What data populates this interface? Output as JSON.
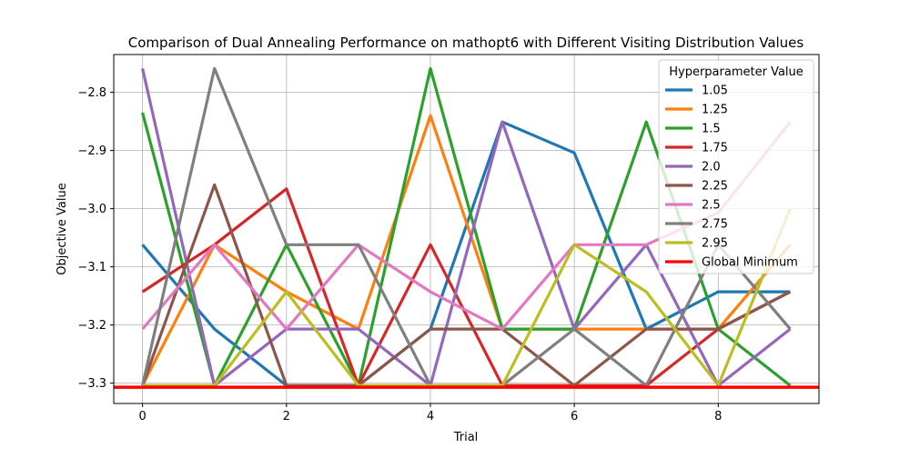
{
  "chart_data": {
    "type": "line",
    "title": "Comparison of Dual Annealing Performance on mathopt6 with Different Visiting Distribution Values",
    "xlabel": "Trial",
    "ylabel": "Objective Value",
    "xlim": [
      -0.4,
      9.4
    ],
    "ylim": [
      -3.335,
      -2.735
    ],
    "xticks": [
      0,
      2,
      4,
      6,
      8
    ],
    "xtick_labels": [
      "0",
      "2",
      "4",
      "6",
      "8"
    ],
    "yticks": [
      -2.8,
      -2.9,
      -3.0,
      -3.1,
      -3.2,
      -3.3
    ],
    "ytick_labels": [
      "−2.8",
      "−2.9",
      "−3.0",
      "−3.1",
      "−3.2",
      "−3.3"
    ],
    "grid": true,
    "legend": {
      "title": "Hyperparameter Value",
      "placement": "top-right"
    },
    "x": [
      0,
      1,
      2,
      3,
      4,
      5,
      6,
      7,
      8,
      9
    ],
    "series": [
      {
        "name": "1.05",
        "color": "#1f77b4",
        "values": [
          -3.062,
          -3.207,
          -3.304,
          -3.304,
          -3.207,
          -2.851,
          -2.904,
          -3.207,
          -3.143,
          -3.143
        ]
      },
      {
        "name": "1.25",
        "color": "#ff7f0e",
        "values": [
          -3.304,
          -3.062,
          -3.143,
          -3.207,
          -2.84,
          -3.207,
          -3.207,
          -3.207,
          -3.207,
          -3.062
        ]
      },
      {
        "name": "1.5",
        "color": "#2ca02c",
        "values": [
          -2.835,
          -3.304,
          -3.062,
          -3.304,
          -2.759,
          -3.207,
          -3.207,
          -2.851,
          -3.207,
          -3.304
        ]
      },
      {
        "name": "1.75",
        "color": "#d62728",
        "values": [
          -3.143,
          -3.062,
          -2.966,
          -3.304,
          -3.062,
          -3.304,
          -3.304,
          -3.304,
          -3.207,
          -3.143
        ]
      },
      {
        "name": "2.0",
        "color": "#9467bd",
        "values": [
          -2.759,
          -3.304,
          -3.207,
          -3.207,
          -3.304,
          -2.851,
          -3.207,
          -3.062,
          -3.304,
          -3.207
        ]
      },
      {
        "name": "2.25",
        "color": "#8c564b",
        "values": [
          -3.304,
          -2.959,
          -3.304,
          -3.304,
          -3.207,
          -3.207,
          -3.304,
          -3.207,
          -3.207,
          -3.143
        ]
      },
      {
        "name": "2.5",
        "color": "#e377c2",
        "values": [
          -3.207,
          -3.062,
          -3.207,
          -3.062,
          -3.143,
          -3.207,
          -3.062,
          -3.062,
          -3.007,
          -2.851
        ]
      },
      {
        "name": "2.75",
        "color": "#7f7f7f",
        "values": [
          -3.304,
          -2.759,
          -3.062,
          -3.062,
          -3.304,
          -3.304,
          -3.207,
          -3.304,
          -3.062,
          -3.207
        ]
      },
      {
        "name": "2.95",
        "color": "#bcbd22",
        "values": [
          -3.304,
          -3.304,
          -3.143,
          -3.304,
          -3.304,
          -3.304,
          -3.062,
          -3.143,
          -3.304,
          -3.0
        ]
      }
    ],
    "reference_line": {
      "name": "Global Minimum",
      "color": "#ff0000",
      "y": -3.307
    }
  }
}
